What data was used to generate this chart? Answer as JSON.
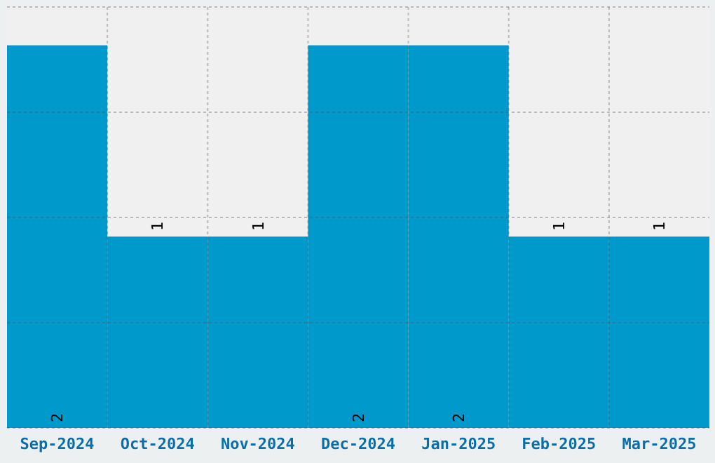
{
  "chart_data": {
    "type": "bar",
    "categories": [
      "Sep-2024",
      "Oct-2024",
      "Nov-2024",
      "Dec-2024",
      "Jan-2025",
      "Feb-2025",
      "Mar-2025"
    ],
    "values": [
      2,
      1,
      1,
      2,
      2,
      1,
      1
    ],
    "color": "#0099cc",
    "data_labels": true,
    "ylim": [
      0,
      2.2
    ],
    "yticks": [
      {
        "value": 0,
        "label": null
      },
      {
        "value": 0.55,
        "label": null
      },
      {
        "value": 1.1,
        "label": null
      },
      {
        "value": 1.65,
        "label": null
      },
      {
        "value": 2.2,
        "label": null
      }
    ],
    "grid": true,
    "tick_labels": "x"
  }
}
